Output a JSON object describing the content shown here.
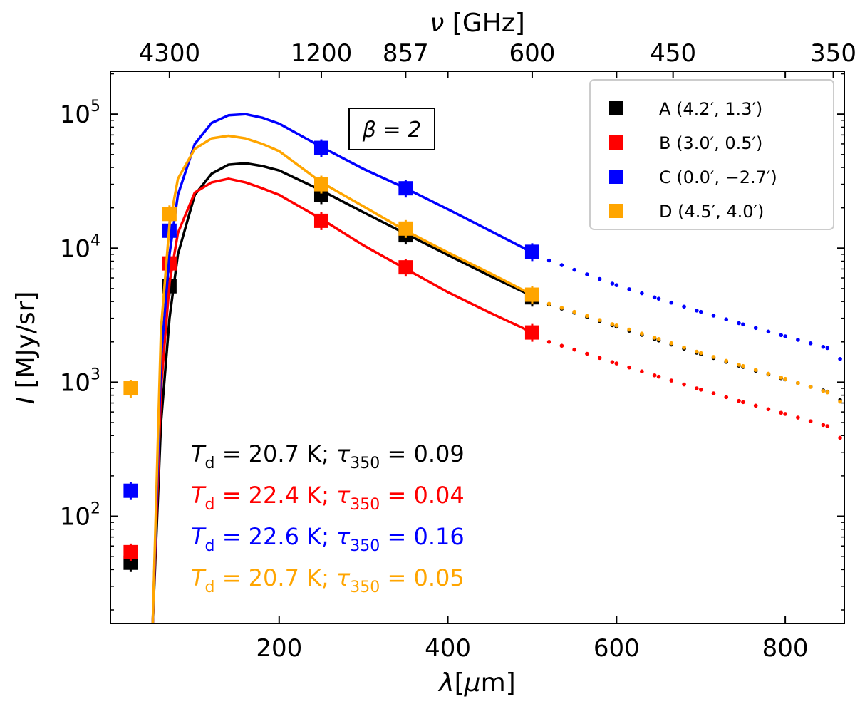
{
  "chart_data": {
    "type": "line",
    "xlabel": "λ[μm]",
    "ylabel": "I [MJy/sr]",
    "x_top_label": "ν [GHz]",
    "xlim": [
      0,
      870
    ],
    "ylim_log10": [
      1.2,
      5.32
    ],
    "x_ticks": [
      200,
      400,
      600,
      800
    ],
    "x_tick_labels": [
      "200",
      "400",
      "600",
      "800"
    ],
    "y_ticks_log10": [
      2,
      3,
      4,
      5
    ],
    "y_tick_labels": [
      {
        "base": "10",
        "exp": "2"
      },
      {
        "base": "10",
        "exp": "3"
      },
      {
        "base": "10",
        "exp": "4"
      },
      {
        "base": "10",
        "exp": "5"
      }
    ],
    "top_ticks": [
      {
        "wavelength": 70,
        "label": "4300"
      },
      {
        "wavelength": 250,
        "label": "1200"
      },
      {
        "wavelength": 350,
        "label": "857"
      },
      {
        "wavelength": 500,
        "label": "600"
      },
      {
        "wavelength": 667,
        "label": "450"
      },
      {
        "wavelength": 857,
        "label": "350"
      }
    ],
    "beta_label": "β = 2",
    "legend_position": "top-right",
    "series": [
      {
        "name": "A (4.2′, 1.3′)",
        "color": "#000000",
        "T_d": "20.7",
        "tau": "0.09",
        "obs_x": [
          24,
          70,
          250,
          350,
          500
        ],
        "obs_y": [
          45,
          5200,
          25000,
          12500,
          4300
        ],
        "model_x": [
          50,
          60,
          70,
          80,
          100,
          120,
          140,
          160,
          180,
          200,
          250,
          300,
          350,
          400,
          450,
          500
        ],
        "model_y": [
          15,
          500,
          3000,
          9000,
          25000,
          36000,
          42000,
          43000,
          41000,
          38000,
          27000,
          18500,
          12800,
          8900,
          6200,
          4400
        ],
        "ext_x": [
          520,
          550,
          600,
          650,
          700,
          750,
          800,
          850,
          870
        ],
        "ext_y": [
          3800,
          3300,
          2600,
          2050,
          1620,
          1300,
          1050,
          850,
          700
        ]
      },
      {
        "name": "B (3.0′, 0.5′)",
        "color": "#ff0000",
        "T_d": "22.4",
        "tau": "0.04",
        "obs_x": [
          24,
          70,
          250,
          350,
          500
        ],
        "obs_y": [
          54,
          7700,
          16000,
          7200,
          2350
        ],
        "model_x": [
          50,
          60,
          70,
          80,
          100,
          120,
          140,
          160,
          180,
          200,
          250,
          300,
          350,
          400,
          450,
          500
        ],
        "model_y": [
          15,
          900,
          5500,
          13000,
          26000,
          31000,
          33000,
          31000,
          28000,
          25000,
          16500,
          10500,
          7000,
          4700,
          3300,
          2350
        ],
        "ext_x": [
          520,
          550,
          600,
          650,
          700,
          750,
          800,
          850,
          870
        ],
        "ext_y": [
          2000,
          1750,
          1380,
          1100,
          880,
          710,
          580,
          470,
          360
        ]
      },
      {
        "name": "C (0.0′, −2.7′)",
        "color": "#0000ff",
        "T_d": "22.6",
        "tau": "0.16",
        "obs_x": [
          24,
          70,
          250,
          350,
          500
        ],
        "obs_y": [
          155,
          13500,
          56000,
          28000,
          9400
        ],
        "model_x": [
          50,
          60,
          70,
          80,
          100,
          120,
          140,
          160,
          180,
          200,
          250,
          300,
          350,
          400,
          450,
          500
        ],
        "model_y": [
          15,
          1500,
          9000,
          25000,
          60000,
          86000,
          98000,
          100000,
          94000,
          85000,
          57000,
          39000,
          28000,
          19500,
          13500,
          9300
        ],
        "ext_x": [
          520,
          550,
          600,
          650,
          700,
          750,
          800,
          850,
          870
        ],
        "ext_y": [
          8100,
          6900,
          5300,
          4200,
          3350,
          2700,
          2200,
          1800,
          1400
        ]
      },
      {
        "name": "D (4.5′, 4.0′)",
        "color": "#ffa500",
        "T_d": "20.7",
        "tau": "0.05",
        "obs_x": [
          24,
          70,
          250,
          350,
          500
        ],
        "obs_y": [
          900,
          18000,
          30000,
          14000,
          4500
        ],
        "model_x": [
          50,
          60,
          70,
          80,
          100,
          120,
          140,
          160,
          180,
          200,
          250,
          300,
          350,
          400,
          450,
          500
        ],
        "model_y": [
          15,
          2500,
          15000,
          33000,
          55000,
          66000,
          69000,
          66000,
          60000,
          53000,
          31000,
          20500,
          13500,
          9300,
          6500,
          4500
        ],
        "ext_x": [
          520,
          550,
          600,
          650,
          700,
          750,
          800,
          850,
          870
        ],
        "ext_y": [
          3850,
          3350,
          2650,
          2100,
          1650,
          1320,
          1060,
          840,
          680
        ]
      }
    ]
  },
  "annotation_parts": {
    "T": "T",
    "d_sub": "d",
    "equals": " = ",
    "K_sep": " K; ",
    "tau_sym": "τ",
    "tau_sub": "350"
  }
}
